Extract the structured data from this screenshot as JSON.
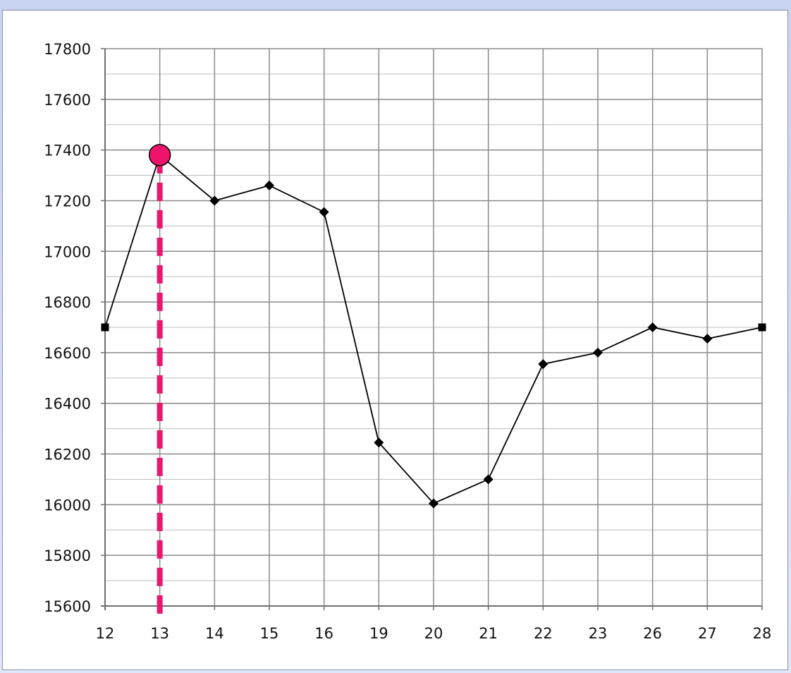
{
  "chart_data": {
    "type": "line",
    "categories": [
      "12",
      "13",
      "14",
      "15",
      "16",
      "19",
      "20",
      "21",
      "22",
      "23",
      "26",
      "27",
      "28"
    ],
    "values": [
      16700,
      17380,
      17200,
      17260,
      17155,
      16245,
      16005,
      16100,
      16555,
      16600,
      16700,
      16655,
      16700
    ],
    "ylim": [
      15600,
      17800
    ],
    "ytick_values": [
      15600,
      15800,
      16000,
      16200,
      16400,
      16600,
      16800,
      17000,
      17200,
      17400,
      17600,
      17800
    ],
    "yticks": [
      "15600",
      "15800",
      "16000",
      "16200",
      "16400",
      "16600",
      "16800",
      "17000",
      "17200",
      "17400",
      "17600",
      "17800"
    ],
    "grid": true,
    "line_color": "#000000",
    "highlight": {
      "category": "13",
      "value": 17380,
      "marker_color": "#f0136b",
      "dash_color": "#e8176f"
    }
  }
}
